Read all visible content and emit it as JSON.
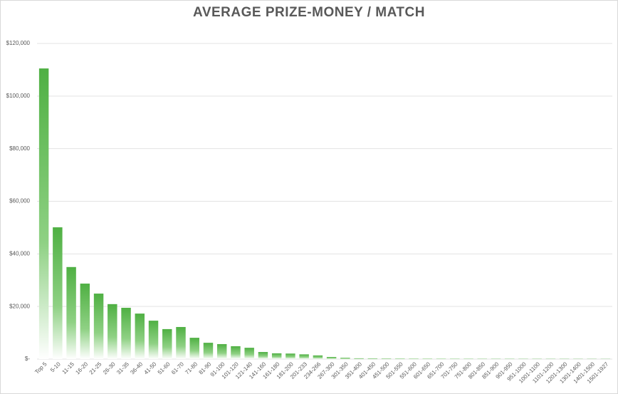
{
  "chart_data": {
    "type": "bar",
    "title": "AVERAGE PRIZE-MONEY / MATCH",
    "categories": [
      "Top 5",
      "5-10",
      "11-15",
      "16-20",
      "21-25",
      "26-30",
      "31-35",
      "36-40",
      "41-50",
      "51-60",
      "61-70",
      "71-80",
      "81-90",
      "91-100",
      "101-120",
      "121-140",
      "141-160",
      "161-180",
      "181-200",
      "201-233",
      "234-266",
      "267-300",
      "301-350",
      "351-400",
      "401-450",
      "451-500",
      "501-550",
      "551-600",
      "601-650",
      "651-700",
      "701-750",
      "751-800",
      "801-850",
      "851-900",
      "901-950",
      "951-1000",
      "1001-1100",
      "1101-1200",
      "1201-1300",
      "1301-1400",
      "1401-1500",
      "1501-1927"
    ],
    "values": [
      110500,
      50100,
      35000,
      28700,
      24900,
      20900,
      19500,
      17300,
      14600,
      11400,
      12200,
      8100,
      6200,
      5700,
      4900,
      4300,
      2700,
      2200,
      2100,
      1800,
      1400,
      800,
      500,
      300,
      250,
      200,
      180,
      160,
      150,
      140,
      130,
      120,
      110,
      100,
      100,
      90,
      90,
      80,
      80,
      70,
      70,
      60
    ],
    "color": "#4fb043",
    "ylim": [
      0,
      120000
    ],
    "yticks": [
      {
        "value": 0,
        "label": "$-"
      },
      {
        "value": 20000,
        "label": "$20,000"
      },
      {
        "value": 40000,
        "label": "$40,000"
      },
      {
        "value": 60000,
        "label": "$60,000"
      },
      {
        "value": 80000,
        "label": "$80,000"
      },
      {
        "value": 100000,
        "label": "$100,000"
      },
      {
        "value": 120000,
        "label": "$120,000"
      }
    ],
    "grid": true
  }
}
